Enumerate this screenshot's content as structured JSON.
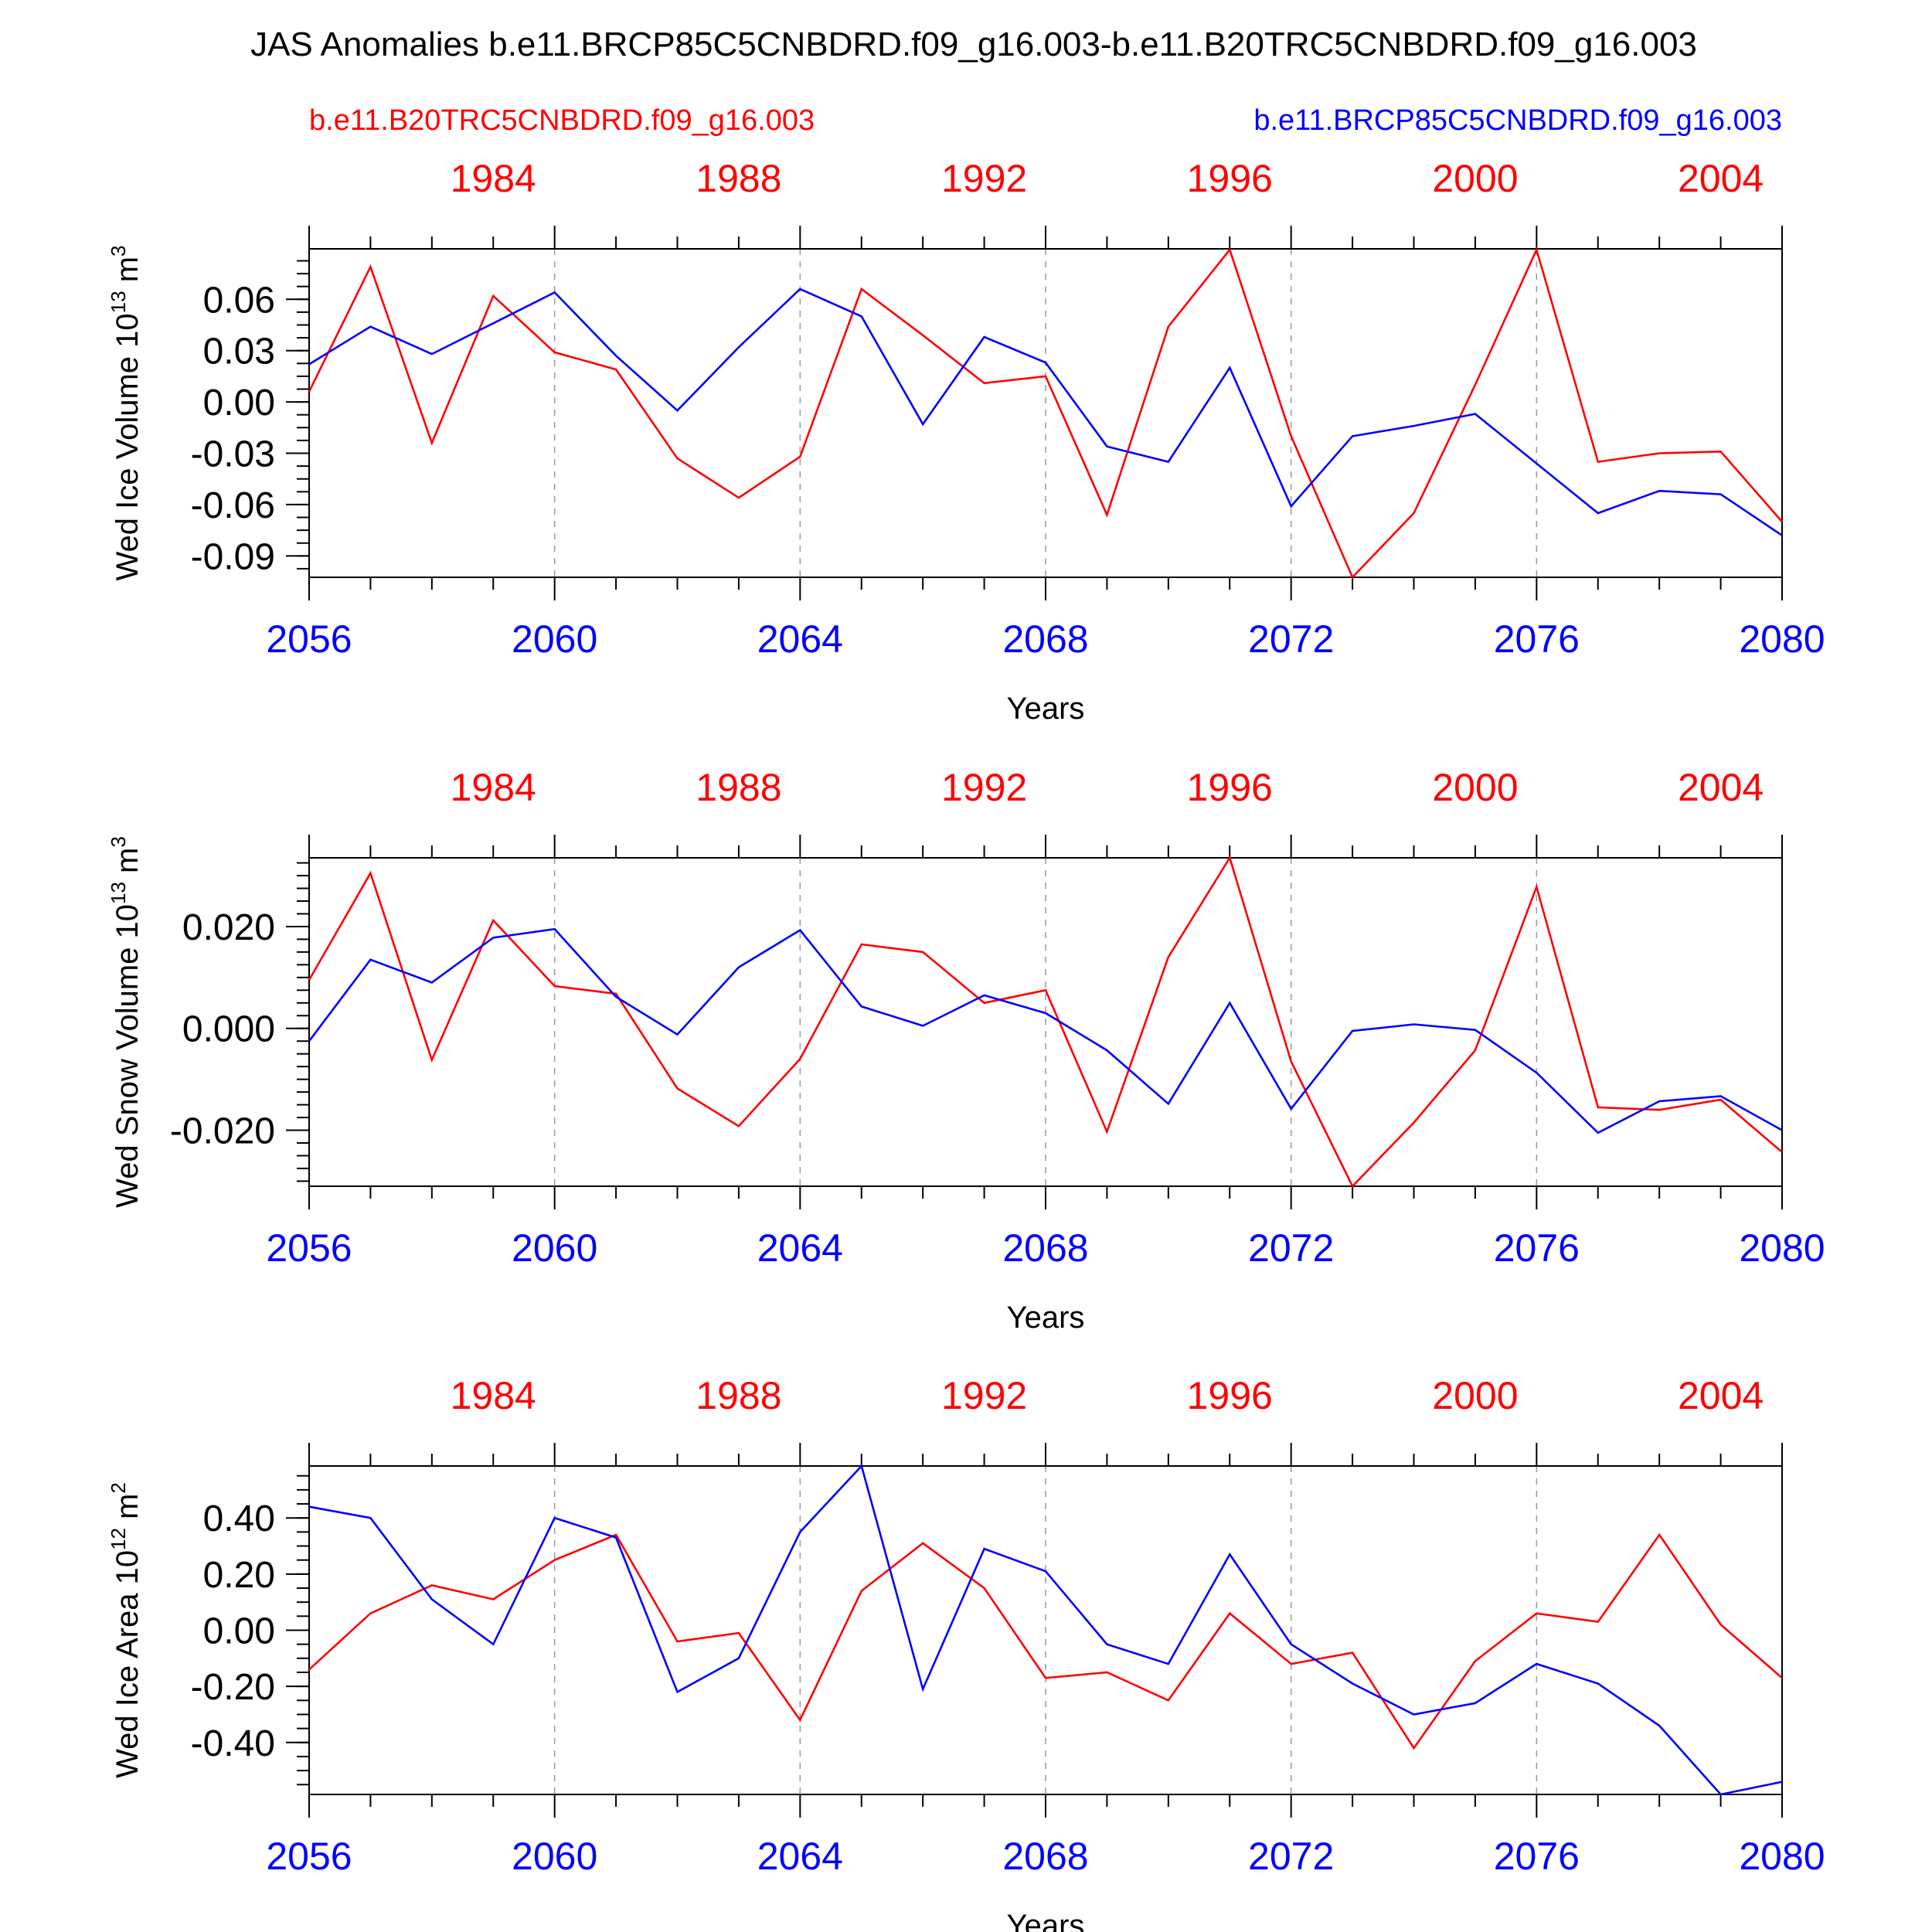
{
  "title": "JAS Anomalies b.e11.BRCP85C5CNBDRD.f09_g16.003-b.e11.B20TRC5CNBDRD.f09_g16.003",
  "legend": {
    "left_label": "b.e11.B20TRC5CNBDRD.f09_g16.003",
    "right_label": "b.e11.BRCP85C5CNBDRD.f09_g16.003"
  },
  "colors": {
    "red": "#ff0000",
    "blue": "#0000ff",
    "axis": "#000000",
    "grid": "#999999"
  },
  "chart_data": [
    {
      "type": "line",
      "ylabel": "Wed Ice Volume 10",
      "ylabel_sup": "13",
      "ylabel_unit": "m",
      "ylabel_unit_sup": "3",
      "xlabel": "Years",
      "xlim": [
        2056,
        2080
      ],
      "ylim": [
        -0.1025,
        0.0895
      ],
      "yticks": [
        0.06,
        0.03,
        0.0,
        -0.03,
        -0.06,
        -0.09
      ],
      "ytick_labels": [
        "0.06",
        "0.03",
        "0.00",
        "-0.03",
        "-0.06",
        "-0.09"
      ],
      "ytick_minor": 0.0075,
      "xticks_bottom": [
        2056,
        2060,
        2064,
        2068,
        2072,
        2076,
        2080
      ],
      "xticks_top": [
        1984,
        1988,
        1992,
        1996,
        2000,
        2004
      ],
      "x_top_offset": 75,
      "series": [
        {
          "name": "b.e11.B20TRC5CNBDRD.f09_g16.003",
          "color": "red",
          "values": [
            0.006,
            0.079,
            -0.024,
            0.062,
            0.029,
            0.019,
            -0.033,
            -0.056,
            -0.032,
            0.066,
            0.039,
            0.011,
            0.015,
            -0.066,
            0.044,
            0.089,
            -0.02,
            -0.1025,
            -0.065,
            0.01,
            0.089,
            -0.035,
            -0.03,
            -0.029,
            -0.07
          ]
        },
        {
          "name": "b.e11.BRCP85C5CNBDRD.f09_g16.003",
          "color": "blue",
          "values": [
            0.022,
            0.044,
            0.028,
            0.046,
            0.064,
            0.027,
            -0.005,
            0.032,
            0.066,
            0.05,
            -0.013,
            0.038,
            0.023,
            -0.026,
            -0.035,
            0.02,
            -0.061,
            -0.02,
            -0.014,
            -0.007,
            -0.036,
            -0.065,
            -0.052,
            -0.054,
            -0.078
          ]
        }
      ]
    },
    {
      "type": "line",
      "ylabel": "Wed Snow Volume 10",
      "ylabel_sup": "13",
      "ylabel_unit": "m",
      "ylabel_unit_sup": "3",
      "xlabel": "Years",
      "xlim": [
        2056,
        2080
      ],
      "ylim": [
        -0.031,
        0.0335
      ],
      "yticks": [
        0.02,
        0.0,
        -0.02
      ],
      "ytick_labels": [
        "0.020",
        "0.000",
        "-0.020"
      ],
      "ytick_minor": 0.0025,
      "xticks_bottom": [
        2056,
        2060,
        2064,
        2068,
        2072,
        2076,
        2080
      ],
      "xticks_top": [
        1984,
        1988,
        1992,
        1996,
        2000,
        2004
      ],
      "x_top_offset": 75,
      "series": [
        {
          "name": "b.e11.B20TRC5CNBDRD.f09_g16.003",
          "color": "red",
          "values": [
            0.0095,
            0.0305,
            -0.0062,
            0.0212,
            0.0083,
            0.0068,
            -0.0118,
            -0.0192,
            -0.006,
            0.0165,
            0.015,
            0.005,
            0.0075,
            -0.0203,
            0.014,
            0.0335,
            -0.0065,
            -0.031,
            -0.0185,
            -0.0043,
            0.0278,
            -0.0155,
            -0.016,
            -0.014,
            -0.0243
          ]
        },
        {
          "name": "b.e11.BRCP85C5CNBDRD.f09_g16.003",
          "color": "blue",
          "values": [
            -0.0025,
            0.0135,
            0.009,
            0.0178,
            0.0195,
            0.0062,
            -0.0012,
            0.012,
            0.0193,
            0.0043,
            0.0005,
            0.0065,
            0.003,
            -0.0043,
            -0.0148,
            0.005,
            -0.0158,
            -0.0005,
            0.0008,
            -0.0003,
            -0.0087,
            -0.0205,
            -0.0143,
            -0.0133,
            -0.02
          ]
        }
      ]
    },
    {
      "type": "line",
      "ylabel": "Wed Ice Area 10",
      "ylabel_sup": "12",
      "ylabel_unit": "m",
      "ylabel_unit_sup": "2",
      "xlabel": "Years",
      "xlim": [
        2056,
        2080
      ],
      "ylim": [
        -0.585,
        0.585
      ],
      "yticks": [
        0.4,
        0.2,
        0.0,
        -0.2,
        -0.4
      ],
      "ytick_labels": [
        "0.40",
        "0.20",
        "0.00",
        "-0.20",
        "-0.40"
      ],
      "ytick_minor": 0.05,
      "xticks_bottom": [
        2056,
        2060,
        2064,
        2068,
        2072,
        2076,
        2080
      ],
      "xticks_top": [
        1984,
        1988,
        1992,
        1996,
        2000,
        2004
      ],
      "x_top_offset": 75,
      "series": [
        {
          "name": "b.e11.B20TRC5CNBDRD.f09_g16.003",
          "color": "red",
          "values": [
            -0.14,
            0.06,
            0.16,
            0.11,
            0.25,
            0.34,
            -0.04,
            -0.01,
            -0.32,
            0.14,
            0.31,
            0.15,
            -0.17,
            -0.15,
            -0.25,
            0.06,
            -0.12,
            -0.08,
            -0.42,
            -0.11,
            0.06,
            0.03,
            0.34,
            0.02,
            -0.17
          ]
        },
        {
          "name": "b.e11.BRCP85C5CNBDRD.f09_g16.003",
          "color": "blue",
          "values": [
            0.44,
            0.4,
            0.11,
            -0.05,
            0.4,
            0.33,
            -0.22,
            -0.1,
            0.35,
            0.585,
            -0.21,
            0.29,
            0.21,
            -0.05,
            -0.12,
            0.27,
            -0.05,
            -0.19,
            -0.3,
            -0.26,
            -0.12,
            -0.19,
            -0.34,
            -0.585,
            -0.54
          ]
        }
      ]
    }
  ]
}
